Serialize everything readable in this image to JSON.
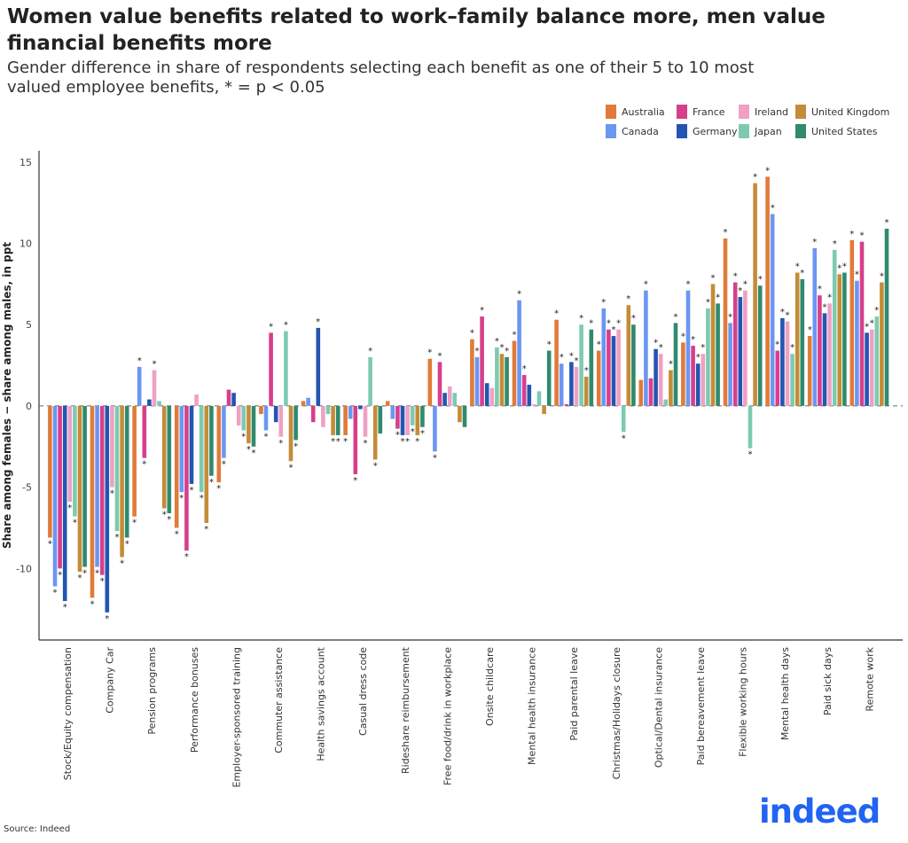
{
  "title": "Women value benefits related to work–family balance more, men value financial benefits more",
  "subtitle": "Gender difference in share of respondents selecting each benefit as one of their 5 to 10 most valued employee benefits, * = p < 0.05",
  "source": "Source: Indeed",
  "logo": "indeed",
  "chart_data": {
    "type": "bar",
    "ylabel": "Share among females − share among males, in ppt",
    "ylim": [
      -14.4,
      15.7
    ],
    "yticks": [
      -10,
      -5,
      0,
      5,
      10,
      15
    ],
    "zero_line": "dashed",
    "grid": false,
    "legend_position": "top-right",
    "significance_marker": "*",
    "categories": [
      "Stock/Equity compensation",
      "Company Car",
      "Pension programs",
      "Performance bonuses",
      "Employer-sponsored training",
      "Commuter assistance",
      "Health savings account",
      "Casual dress code",
      "Rideshare reimbursement",
      "Free food/drink in workplace",
      "Onsite childcare",
      "Mental health insurance",
      "Paid parental leave",
      "Christmas/Holidays closure",
      "Optical/Dental insurance",
      "Paid bereavement leave",
      "Flexible working hours",
      "Mental health days",
      "Paid sick days",
      "Remote work"
    ],
    "series": [
      {
        "name": "Australia",
        "color": "#E07B39",
        "values": [
          -8.1,
          -11.8,
          -6.8,
          -7.5,
          -4.7,
          -0.5,
          0.3,
          -1.8,
          0.3,
          2.9,
          4.1,
          4.0,
          5.3,
          3.4,
          1.6,
          3.9,
          10.3,
          14.1,
          4.3,
          10.2
        ],
        "significant": [
          1,
          1,
          1,
          1,
          1,
          0,
          0,
          1,
          0,
          1,
          1,
          1,
          1,
          1,
          0,
          1,
          1,
          1,
          1,
          1
        ]
      },
      {
        "name": "Canada",
        "color": "#6B96F2",
        "values": [
          -11.1,
          -9.9,
          2.4,
          -5.3,
          -3.2,
          -1.5,
          0.5,
          -0.8,
          -0.8,
          -2.8,
          3.0,
          6.5,
          2.6,
          6.0,
          7.1,
          7.1,
          5.1,
          11.8,
          9.7,
          7.7
        ],
        "significant": [
          1,
          1,
          1,
          1,
          1,
          1,
          0,
          0,
          0,
          1,
          1,
          1,
          1,
          1,
          1,
          1,
          1,
          1,
          1,
          1
        ]
      },
      {
        "name": "France",
        "color": "#D63F8C",
        "values": [
          -10.0,
          -10.4,
          -3.2,
          -8.9,
          1.0,
          4.5,
          -1.0,
          -4.2,
          -1.4,
          2.7,
          5.5,
          1.9,
          0.1,
          4.7,
          1.7,
          3.7,
          7.6,
          3.4,
          6.8,
          10.1
        ],
        "significant": [
          1,
          1,
          1,
          1,
          0,
          1,
          0,
          1,
          1,
          1,
          1,
          1,
          0,
          1,
          0,
          1,
          1,
          1,
          1,
          1
        ]
      },
      {
        "name": "Germany",
        "color": "#2455B0",
        "values": [
          -12.0,
          -12.7,
          0.4,
          -4.8,
          0.8,
          -1.0,
          4.8,
          -0.2,
          -1.8,
          0.8,
          1.4,
          1.3,
          2.7,
          4.3,
          3.5,
          2.6,
          6.7,
          5.4,
          5.7,
          4.5
        ],
        "significant": [
          1,
          1,
          0,
          1,
          0,
          0,
          1,
          0,
          1,
          0,
          0,
          0,
          1,
          1,
          1,
          1,
          1,
          1,
          1,
          1
        ]
      },
      {
        "name": "Ireland",
        "color": "#EFA0C4",
        "values": [
          -5.9,
          -5.0,
          2.2,
          0.7,
          -1.2,
          -1.9,
          -1.3,
          -1.9,
          -1.8,
          1.2,
          1.1,
          0.1,
          2.4,
          4.7,
          3.2,
          3.2,
          7.1,
          5.2,
          6.3,
          4.7
        ],
        "significant": [
          1,
          1,
          1,
          0,
          0,
          1,
          0,
          1,
          1,
          0,
          0,
          0,
          1,
          1,
          1,
          1,
          1,
          1,
          1,
          1
        ]
      },
      {
        "name": "Japan",
        "color": "#7DCAB0",
        "values": [
          -6.8,
          -7.7,
          0.3,
          -5.3,
          -1.5,
          4.6,
          -0.5,
          3.0,
          -1.2,
          0.8,
          3.6,
          0.9,
          5.0,
          -1.6,
          0.4,
          6.0,
          -2.6,
          3.2,
          9.6,
          5.5
        ],
        "significant": [
          1,
          1,
          0,
          1,
          1,
          1,
          0,
          1,
          1,
          0,
          1,
          0,
          1,
          1,
          0,
          1,
          1,
          1,
          1,
          1
        ]
      },
      {
        "name": "United Kingdom",
        "color": "#C48C38",
        "values": [
          -10.2,
          -9.3,
          -6.3,
          -7.2,
          -2.3,
          -3.4,
          -1.8,
          -3.3,
          -1.8,
          -1.0,
          3.2,
          -0.5,
          1.8,
          6.2,
          2.2,
          7.5,
          13.7,
          8.2,
          8.1,
          7.6
        ],
        "significant": [
          1,
          1,
          1,
          1,
          1,
          1,
          1,
          1,
          1,
          0,
          1,
          0,
          1,
          1,
          1,
          1,
          1,
          1,
          1,
          1
        ]
      },
      {
        "name": "United States",
        "color": "#2F8A6E",
        "values": [
          -9.9,
          -8.1,
          -6.6,
          -4.3,
          -2.5,
          -2.1,
          -1.8,
          -1.7,
          -1.3,
          -1.3,
          3.0,
          3.4,
          4.7,
          5.0,
          5.1,
          6.3,
          7.4,
          7.8,
          8.2,
          10.9
        ],
        "significant": [
          1,
          1,
          1,
          1,
          1,
          1,
          1,
          0,
          1,
          0,
          1,
          1,
          1,
          1,
          1,
          1,
          1,
          1,
          1,
          1
        ]
      }
    ]
  }
}
